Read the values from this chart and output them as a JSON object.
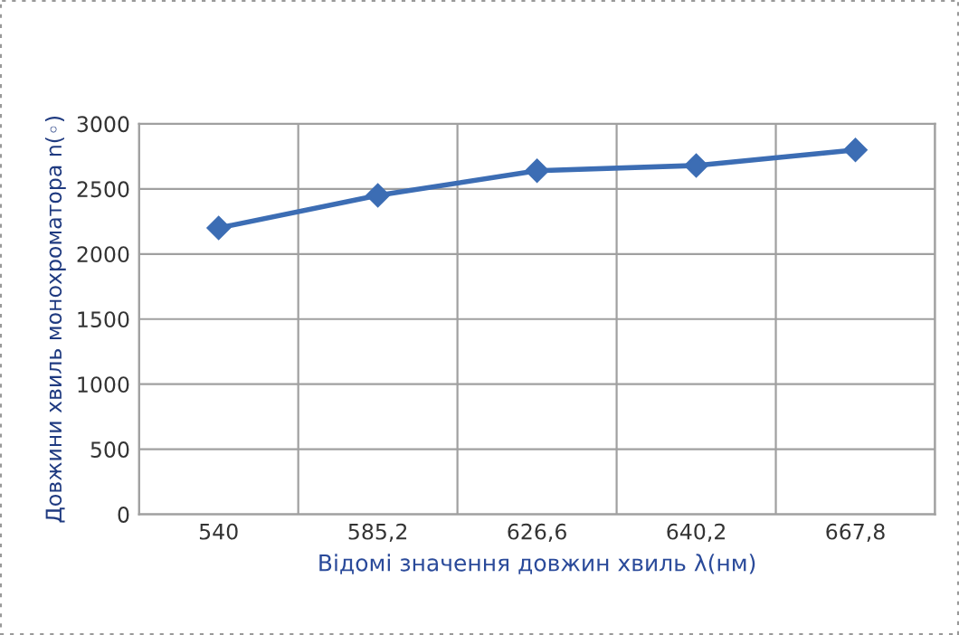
{
  "chart_data": {
    "type": "line",
    "xlabel": "Відомі значення довжин хвиль λ(нм)",
    "ylabel": "Довжини хвиль монохроматора n(◦)",
    "categories": [
      "540",
      "585,2",
      "626,6",
      "640,2",
      "667,8"
    ],
    "series": [
      {
        "color": "#3c6db4",
        "values": [
          2200,
          2450,
          2640,
          2680,
          2800
        ]
      }
    ],
    "ylim": [
      0,
      3000
    ],
    "yticks": [
      0,
      500,
      1000,
      1500,
      2000,
      2500,
      3000
    ],
    "grid": true,
    "marker": "diamond",
    "line_style": "solid",
    "legend": false
  }
}
